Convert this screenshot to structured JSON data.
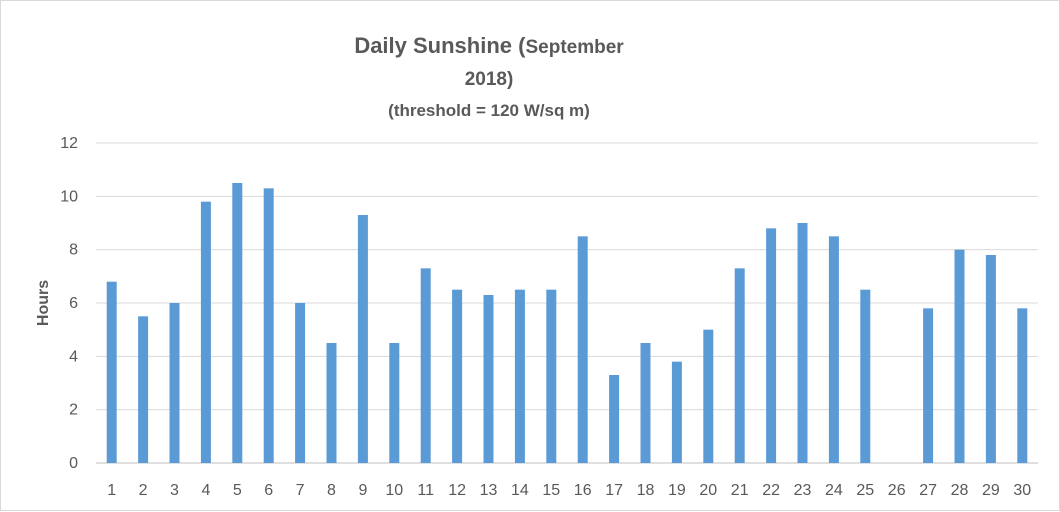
{
  "chart_data": {
    "type": "bar",
    "title_main": "Daily Sunshine",
    "title_paren_open": " (",
    "title_month": "September",
    "title_year": "2018",
    "title_paren_close": ")",
    "subtitle": "(threshold = 120 W/sq m)",
    "xlabel": "",
    "ylabel": "Hours",
    "ylim": [
      0,
      12
    ],
    "yticks": [
      0,
      2,
      4,
      6,
      8,
      10,
      12
    ],
    "grid": true,
    "bar_color": "#5b9bd5",
    "categories": [
      "1",
      "2",
      "3",
      "4",
      "5",
      "6",
      "7",
      "8",
      "9",
      "10",
      "11",
      "12",
      "13",
      "14",
      "15",
      "16",
      "17",
      "18",
      "19",
      "20",
      "21",
      "22",
      "23",
      "24",
      "25",
      "26",
      "27",
      "28",
      "29",
      "30"
    ],
    "values": [
      6.8,
      5.5,
      6.0,
      9.8,
      10.5,
      10.3,
      6.0,
      4.5,
      9.3,
      4.5,
      7.3,
      6.5,
      6.3,
      6.5,
      6.5,
      8.5,
      3.3,
      4.5,
      3.8,
      5.0,
      7.3,
      8.8,
      9.0,
      8.5,
      6.5,
      0,
      5.8,
      8.0,
      7.8,
      5.8
    ]
  }
}
